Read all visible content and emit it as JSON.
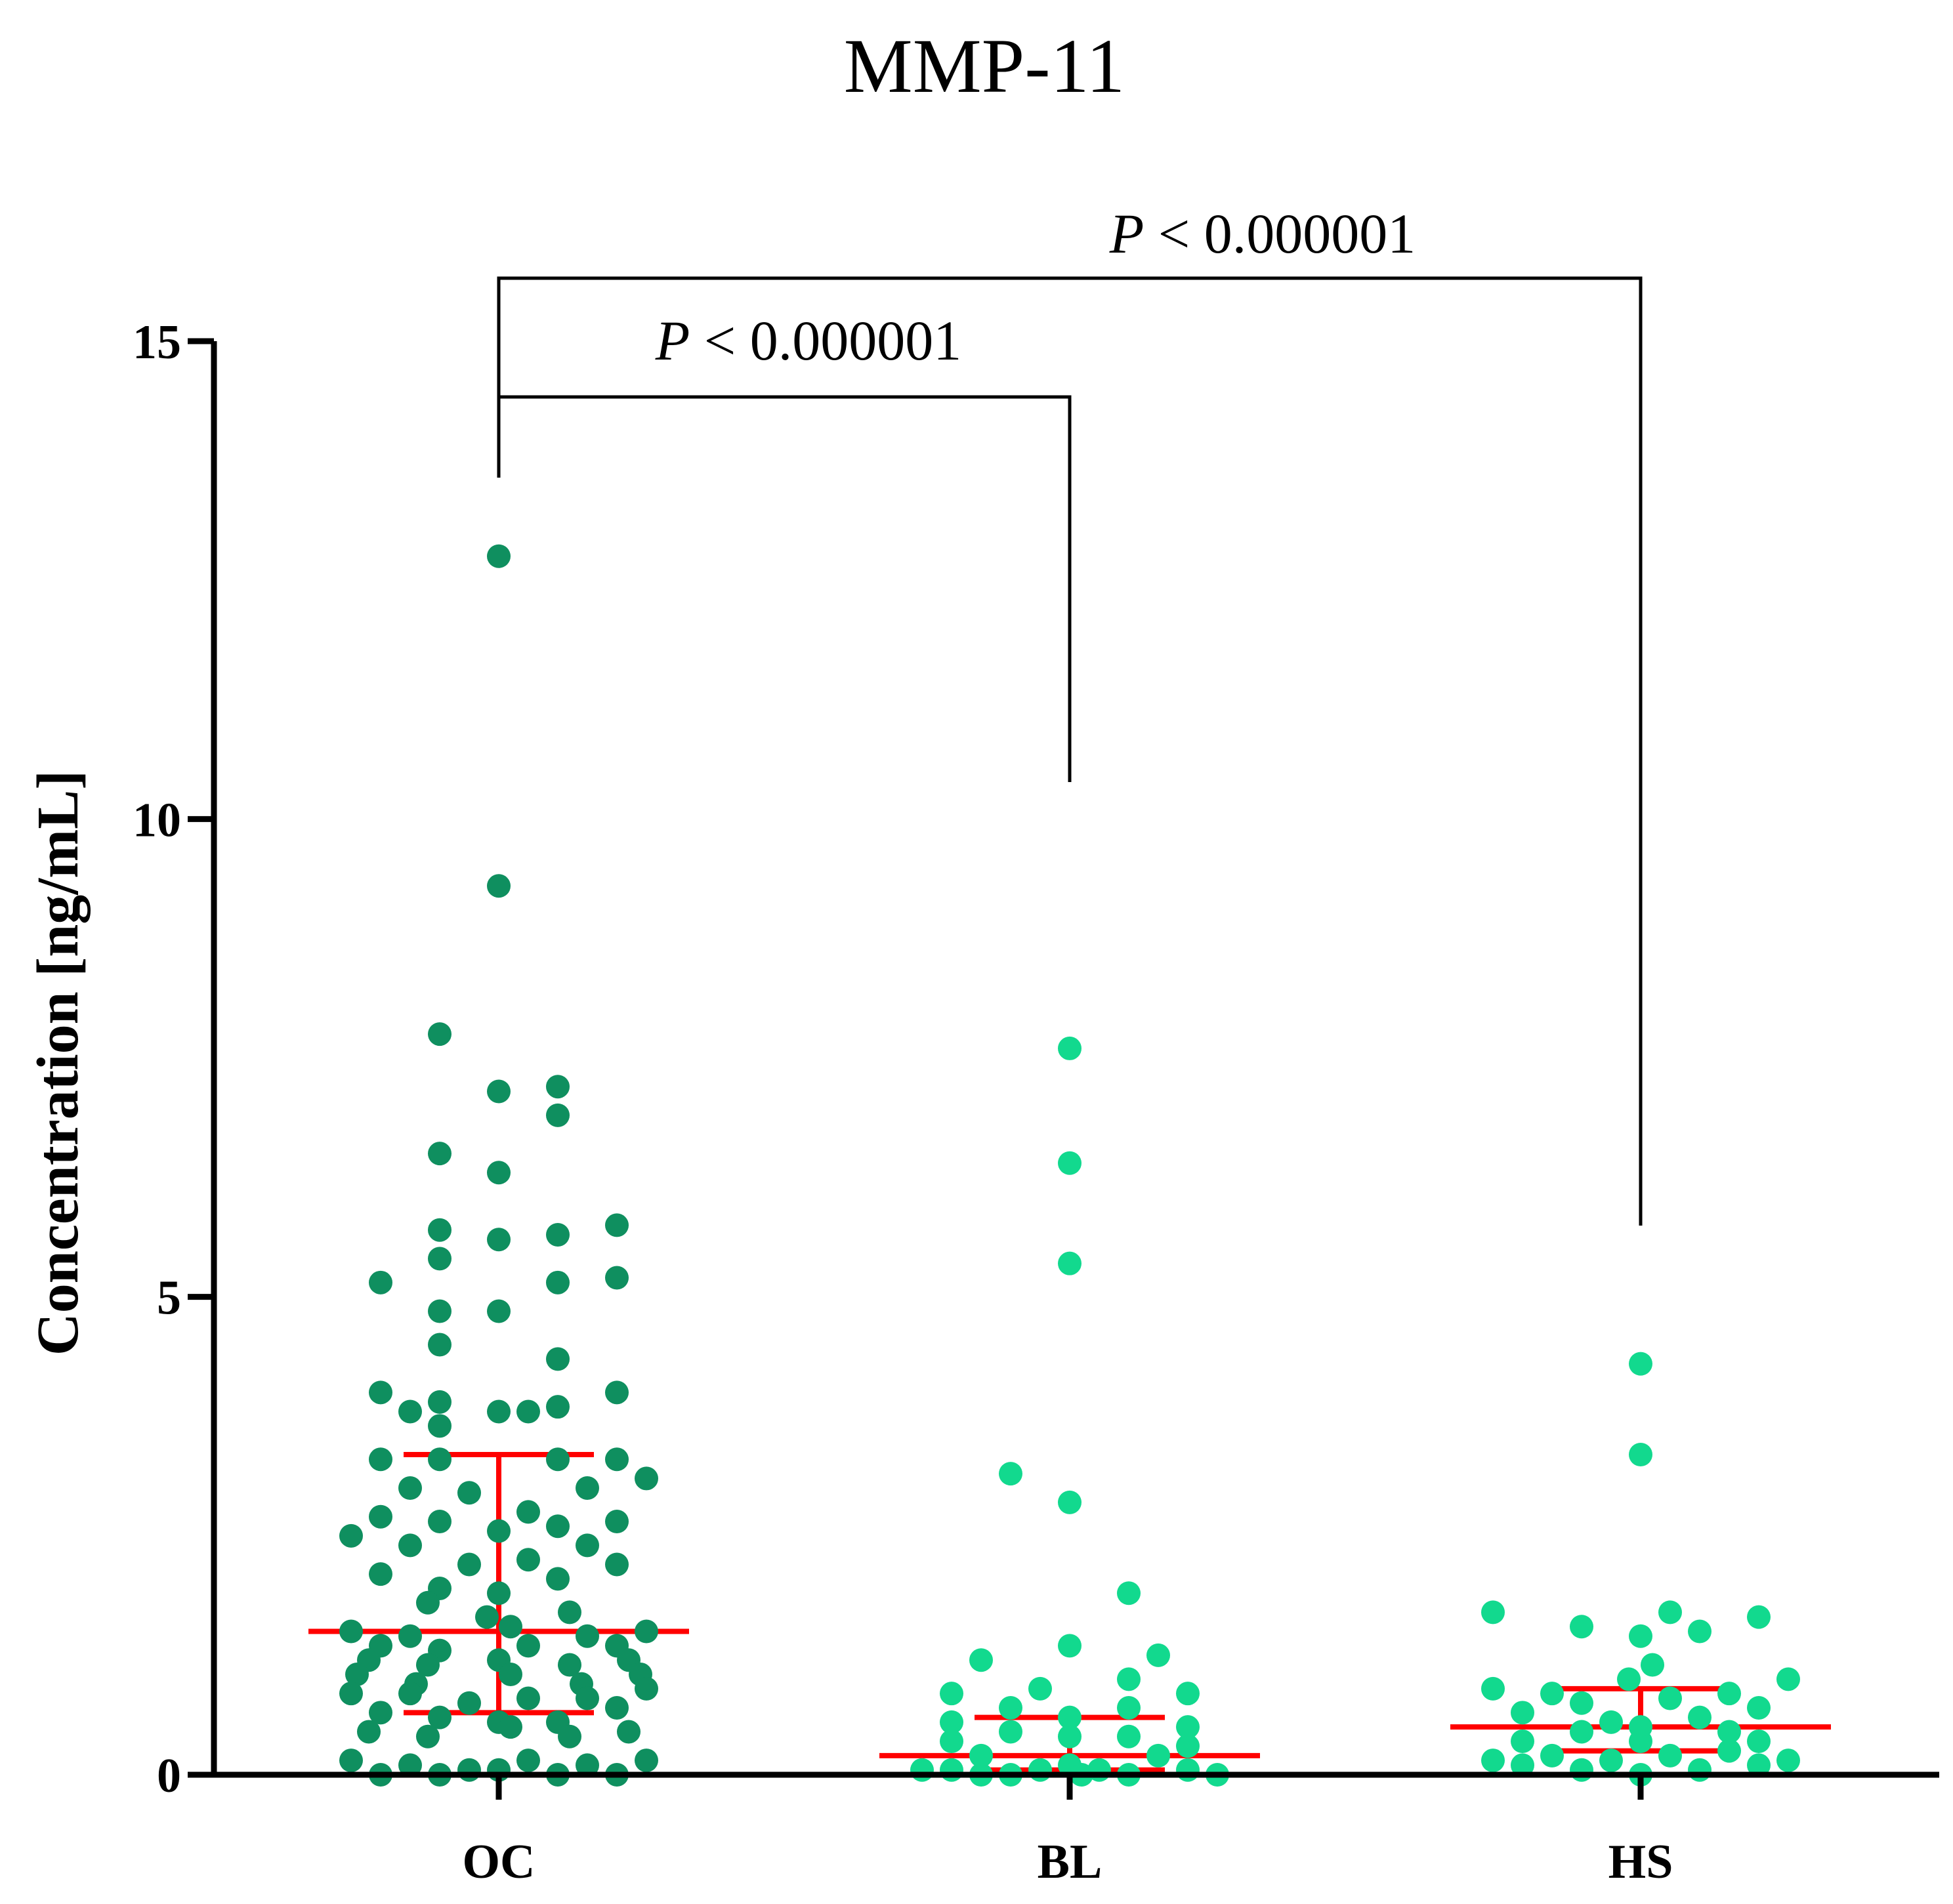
{
  "chart_data": {
    "type": "scatter",
    "title": "MMP-11",
    "ylabel": "Concentration [ng/mL]",
    "xlabel": "",
    "ylim": [
      0,
      15
    ],
    "yticks": [
      0,
      5,
      10,
      15
    ],
    "categories": [
      "OC",
      "BL",
      "HS"
    ],
    "colors": {
      "OC": "#0f8f5f",
      "BL": "#12d98e",
      "HS": "#12d98e",
      "stats": "#ff0000"
    },
    "groups": [
      {
        "name": "OC",
        "median": 1.5,
        "q1": 0.65,
        "q3": 3.35,
        "points": [
          [
            0,
            12.75
          ],
          [
            0,
            9.3
          ],
          [
            -1,
            7.75
          ],
          [
            0,
            7.15
          ],
          [
            1,
            7.2
          ],
          [
            1,
            6.9
          ],
          [
            -1,
            6.5
          ],
          [
            0,
            6.3
          ],
          [
            -1,
            5.7
          ],
          [
            0,
            5.6
          ],
          [
            1,
            5.65
          ],
          [
            2,
            5.75
          ],
          [
            -1,
            5.4
          ],
          [
            -2,
            5.15
          ],
          [
            1,
            5.15
          ],
          [
            2,
            5.2
          ],
          [
            -1,
            4.85
          ],
          [
            0,
            4.85
          ],
          [
            -1,
            4.5
          ],
          [
            1,
            4.35
          ],
          [
            -2,
            4.0
          ],
          [
            2,
            4.0
          ],
          [
            -1,
            3.9
          ],
          [
            -1.5,
            3.8
          ],
          [
            0,
            3.8
          ],
          [
            0.5,
            3.8
          ],
          [
            1,
            3.85
          ],
          [
            -1,
            3.65
          ],
          [
            -2,
            3.3
          ],
          [
            -1,
            3.3
          ],
          [
            1,
            3.3
          ],
          [
            2,
            3.3
          ],
          [
            2.5,
            3.1
          ],
          [
            -1.5,
            3.0
          ],
          [
            -0.5,
            2.95
          ],
          [
            1.5,
            3.0
          ],
          [
            -2,
            2.7
          ],
          [
            -1,
            2.65
          ],
          [
            0.5,
            2.75
          ],
          [
            1,
            2.6
          ],
          [
            2,
            2.65
          ],
          [
            -2.5,
            2.5
          ],
          [
            0,
            2.55
          ],
          [
            -1.5,
            2.4
          ],
          [
            1.5,
            2.4
          ],
          [
            -0.5,
            2.2
          ],
          [
            0.5,
            2.25
          ],
          [
            2,
            2.2
          ],
          [
            -2,
            2.1
          ],
          [
            1,
            2.05
          ],
          [
            -1,
            1.95
          ],
          [
            -1.2,
            1.8
          ],
          [
            0,
            1.9
          ],
          [
            1.2,
            1.7
          ],
          [
            -0.2,
            1.65
          ],
          [
            2.5,
            1.5
          ],
          [
            -2.5,
            1.5
          ],
          [
            -1.5,
            1.45
          ],
          [
            0.2,
            1.55
          ],
          [
            1.5,
            1.45
          ],
          [
            -2,
            1.35
          ],
          [
            -1,
            1.3
          ],
          [
            0.5,
            1.35
          ],
          [
            2,
            1.35
          ],
          [
            -2.2,
            1.2
          ],
          [
            -1.2,
            1.15
          ],
          [
            0,
            1.2
          ],
          [
            1.2,
            1.15
          ],
          [
            2.2,
            1.2
          ],
          [
            -2.4,
            1.05
          ],
          [
            -1.4,
            0.95
          ],
          [
            0.2,
            1.05
          ],
          [
            1.4,
            0.95
          ],
          [
            2.4,
            1.05
          ],
          [
            -2.5,
            0.85
          ],
          [
            -1.5,
            0.85
          ],
          [
            -0.5,
            0.75
          ],
          [
            0.5,
            0.8
          ],
          [
            1.5,
            0.8
          ],
          [
            2.5,
            0.9
          ],
          [
            -2,
            0.65
          ],
          [
            -1,
            0.6
          ],
          [
            0,
            0.55
          ],
          [
            1,
            0.55
          ],
          [
            2,
            0.7
          ],
          [
            -2.2,
            0.45
          ],
          [
            -1.2,
            0.4
          ],
          [
            0.2,
            0.5
          ],
          [
            1.2,
            0.4
          ],
          [
            2.2,
            0.45
          ],
          [
            -2.5,
            0.15
          ],
          [
            -1.5,
            0.1
          ],
          [
            -0.5,
            0.05
          ],
          [
            0.5,
            0.15
          ],
          [
            1.5,
            0.1
          ],
          [
            2.5,
            0.15
          ],
          [
            -2,
            0.0
          ],
          [
            -1,
            0.0
          ],
          [
            0,
            0.05
          ],
          [
            1,
            0.0
          ],
          [
            2,
            0.0
          ]
        ]
      },
      {
        "name": "BL",
        "median": 0.2,
        "q1": 0.05,
        "q3": 0.6,
        "points": [
          [
            0,
            7.6
          ],
          [
            0,
            6.4
          ],
          [
            0,
            5.35
          ],
          [
            -1,
            3.15
          ],
          [
            0,
            2.85
          ],
          [
            1,
            1.9
          ],
          [
            -1.5,
            1.2
          ],
          [
            0,
            1.35
          ],
          [
            1.5,
            1.25
          ],
          [
            1,
            1.0
          ],
          [
            -0.5,
            0.9
          ],
          [
            -2,
            0.85
          ],
          [
            2,
            0.85
          ],
          [
            -1,
            0.7
          ],
          [
            1,
            0.7
          ],
          [
            -2,
            0.55
          ],
          [
            0,
            0.6
          ],
          [
            2,
            0.5
          ],
          [
            -1,
            0.45
          ],
          [
            0,
            0.4
          ],
          [
            1,
            0.4
          ],
          [
            -2,
            0.35
          ],
          [
            2,
            0.3
          ],
          [
            -1.5,
            0.2
          ],
          [
            1.5,
            0.2
          ],
          [
            -2.5,
            0.05
          ],
          [
            -2,
            0.05
          ],
          [
            -1,
            0.0
          ],
          [
            -0.5,
            0.05
          ],
          [
            0,
            0.1
          ],
          [
            0.5,
            0.05
          ],
          [
            1,
            0.0
          ],
          [
            2,
            0.05
          ],
          [
            2.5,
            0.0
          ],
          [
            -1.5,
            0.0
          ],
          [
            0.2,
            0.0
          ]
        ]
      },
      {
        "name": "HS",
        "median": 0.5,
        "q1": 0.25,
        "q3": 0.9,
        "points": [
          [
            0,
            4.3
          ],
          [
            0,
            3.35
          ],
          [
            -2.5,
            1.7
          ],
          [
            -1,
            1.55
          ],
          [
            0,
            1.45
          ],
          [
            0.5,
            1.7
          ],
          [
            1,
            1.5
          ],
          [
            2,
            1.65
          ],
          [
            0.2,
            1.15
          ],
          [
            -0.2,
            1.0
          ],
          [
            2.5,
            1.0
          ],
          [
            -2.5,
            0.9
          ],
          [
            -1.5,
            0.85
          ],
          [
            1.5,
            0.85
          ],
          [
            -1,
            0.75
          ],
          [
            0.5,
            0.8
          ],
          [
            2,
            0.7
          ],
          [
            -2,
            0.65
          ],
          [
            -0.5,
            0.55
          ],
          [
            1,
            0.6
          ],
          [
            -1,
            0.45
          ],
          [
            0,
            0.5
          ],
          [
            1.5,
            0.45
          ],
          [
            -2,
            0.35
          ],
          [
            0,
            0.35
          ],
          [
            2,
            0.35
          ],
          [
            -1.5,
            0.2
          ],
          [
            0.5,
            0.2
          ],
          [
            1.5,
            0.25
          ],
          [
            -2.5,
            0.15
          ],
          [
            -0.5,
            0.15
          ],
          [
            2.5,
            0.15
          ],
          [
            -1,
            0.05
          ],
          [
            1,
            0.05
          ],
          [
            0,
            0.0
          ],
          [
            -2,
            0.1
          ],
          [
            2,
            0.1
          ]
        ]
      }
    ],
    "comparisons": [
      {
        "from": "OC",
        "to": "BL",
        "label_p": "P",
        "label_rest": " < 0.000001"
      },
      {
        "from": "OC",
        "to": "HS",
        "label_p": "P",
        "label_rest": " < 0.000001"
      }
    ]
  }
}
